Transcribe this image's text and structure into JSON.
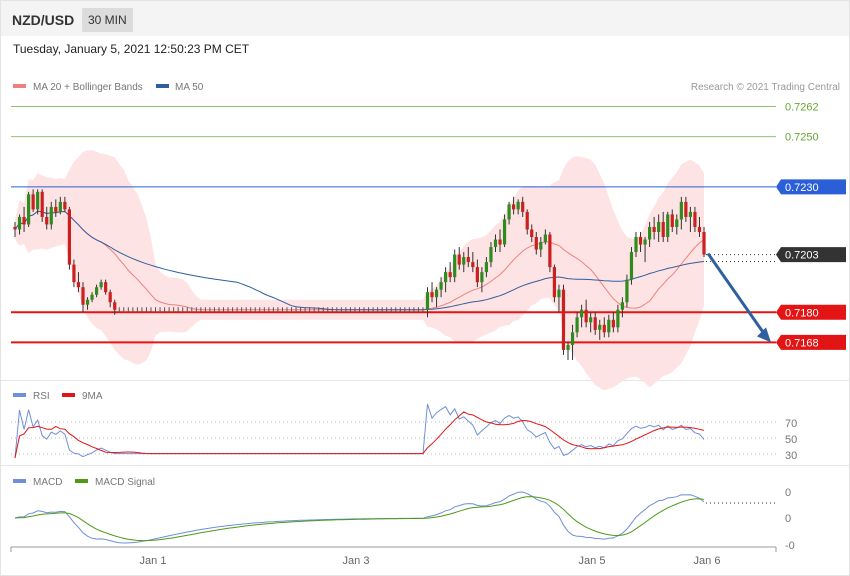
{
  "header": {
    "pair": "NZD/USD",
    "timeframe": "30 MIN",
    "datetime": "Tuesday, January 5, 2021 12:50:23 PM CET"
  },
  "legend": {
    "ma20_label": "MA 20 + Bollinger Bands",
    "ma50_label": "MA 50",
    "copyright": "Research © 2021 Trading Central"
  },
  "colors": {
    "ma20": "#f08080",
    "ma50": "#2f5f9e",
    "bollinger_fill": "#fde3e3",
    "bull_candle": "#2e8b1e",
    "bear_candle": "#cc1f1f",
    "support": "#e31414",
    "resistance": "#2b5fd8",
    "target": "#63a832",
    "current": "#333333",
    "rsi": "#6f8fd8",
    "rsi_ma": "#e31414",
    "macd": "#6f8fd8",
    "macd_signal": "#4e9a18",
    "arrow": "#2f5f9e"
  },
  "price_levels": [
    {
      "value": "0.7262",
      "kind": "target"
    },
    {
      "value": "0.7250",
      "kind": "target"
    },
    {
      "value": "0.7230",
      "kind": "resistance"
    },
    {
      "value": "0.7203",
      "kind": "current"
    },
    {
      "value": "0.7180",
      "kind": "support"
    },
    {
      "value": "0.7168",
      "kind": "support"
    }
  ],
  "rsi_panel": {
    "rsi_label": "RSI",
    "ma_label": "9MA",
    "levels": [
      "70",
      "50",
      "30"
    ]
  },
  "macd_panel": {
    "macd_label": "MACD",
    "signal_label": "MACD Signal",
    "levels": [
      "0",
      "0",
      "-0"
    ]
  },
  "x_axis": {
    "labels": [
      "Jan 1",
      "Jan 3",
      "Jan 5",
      "Jan 6"
    ]
  },
  "chart_data": {
    "type": "candlestick",
    "price_range": [
      0.7155,
      0.7265
    ],
    "x_ticks": [
      "Jan 1",
      "Jan 3",
      "Jan 5",
      "Jan 6"
    ],
    "candles": [
      [
        0.7214,
        0.7216,
        0.721,
        0.7213
      ],
      [
        0.7213,
        0.7219,
        0.7211,
        0.7218
      ],
      [
        0.7218,
        0.7222,
        0.7212,
        0.7215
      ],
      [
        0.7215,
        0.7228,
        0.7214,
        0.7227
      ],
      [
        0.7227,
        0.7229,
        0.722,
        0.7221
      ],
      [
        0.7221,
        0.7229,
        0.7219,
        0.7228
      ],
      [
        0.7228,
        0.7229,
        0.7216,
        0.7218
      ],
      [
        0.7218,
        0.7222,
        0.7213,
        0.7215
      ],
      [
        0.7215,
        0.7224,
        0.7213,
        0.7222
      ],
      [
        0.7222,
        0.7225,
        0.7218,
        0.722
      ],
      [
        0.722,
        0.7226,
        0.7219,
        0.7224
      ],
      [
        0.7224,
        0.7226,
        0.722,
        0.7221
      ],
      [
        0.7221,
        0.7222,
        0.7197,
        0.7199
      ],
      [
        0.7199,
        0.7201,
        0.719,
        0.7192
      ],
      [
        0.7192,
        0.7196,
        0.7188,
        0.719
      ],
      [
        0.719,
        0.7192,
        0.718,
        0.7183
      ],
      [
        0.7183,
        0.7186,
        0.7181,
        0.7185
      ],
      [
        0.7185,
        0.7188,
        0.7184,
        0.7187
      ],
      [
        0.7187,
        0.7191,
        0.7186,
        0.719
      ],
      [
        0.719,
        0.7193,
        0.7189,
        0.7192
      ],
      [
        0.7192,
        0.7193,
        0.7187,
        0.7188
      ],
      [
        0.7188,
        0.7189,
        0.7182,
        0.7184
      ],
      [
        0.7184,
        0.7185,
        0.7179,
        0.7181
      ],
      [
        0.7181,
        0.7182,
        0.718,
        0.7181
      ],
      [
        0.7181,
        0.7182,
        0.718,
        0.7181
      ],
      [
        0.7181,
        0.7182,
        0.718,
        0.7181
      ],
      [
        0.7181,
        0.7182,
        0.718,
        0.7181
      ],
      [
        0.7181,
        0.7182,
        0.718,
        0.7181
      ],
      [
        0.7181,
        0.7182,
        0.718,
        0.7181
      ],
      [
        0.7181,
        0.7182,
        0.718,
        0.7181
      ],
      [
        0.7181,
        0.7182,
        0.718,
        0.7181
      ],
      [
        0.7181,
        0.7182,
        0.718,
        0.7181
      ],
      [
        0.7181,
        0.7182,
        0.718,
        0.7181
      ],
      [
        0.7181,
        0.7182,
        0.718,
        0.7181
      ],
      [
        0.7181,
        0.7182,
        0.718,
        0.7181
      ],
      [
        0.7181,
        0.7182,
        0.718,
        0.7181
      ],
      [
        0.7181,
        0.7182,
        0.718,
        0.7181
      ],
      [
        0.7181,
        0.7182,
        0.718,
        0.7181
      ],
      [
        0.7181,
        0.7182,
        0.718,
        0.7181
      ],
      [
        0.7181,
        0.7182,
        0.718,
        0.7181
      ],
      [
        0.7181,
        0.7182,
        0.718,
        0.7181
      ],
      [
        0.7181,
        0.7182,
        0.718,
        0.7181
      ],
      [
        0.7181,
        0.7182,
        0.718,
        0.7181
      ],
      [
        0.7181,
        0.7182,
        0.718,
        0.7181
      ],
      [
        0.7181,
        0.7182,
        0.718,
        0.7181
      ],
      [
        0.7181,
        0.7182,
        0.718,
        0.7181
      ],
      [
        0.7181,
        0.7182,
        0.718,
        0.7181
      ],
      [
        0.7181,
        0.7182,
        0.718,
        0.7181
      ],
      [
        0.7181,
        0.7182,
        0.718,
        0.7181
      ],
      [
        0.7181,
        0.7182,
        0.718,
        0.7181
      ],
      [
        0.7181,
        0.7182,
        0.718,
        0.7181
      ],
      [
        0.7181,
        0.7182,
        0.718,
        0.7181
      ],
      [
        0.7181,
        0.7182,
        0.718,
        0.7181
      ],
      [
        0.7181,
        0.7182,
        0.718,
        0.7181
      ],
      [
        0.7181,
        0.7182,
        0.718,
        0.7181
      ],
      [
        0.7181,
        0.7182,
        0.718,
        0.7181
      ],
      [
        0.7181,
        0.7182,
        0.718,
        0.7181
      ],
      [
        0.7181,
        0.7182,
        0.718,
        0.7181
      ],
      [
        0.7181,
        0.7182,
        0.718,
        0.7181
      ],
      [
        0.7181,
        0.7182,
        0.718,
        0.7181
      ],
      [
        0.7181,
        0.7182,
        0.718,
        0.7181
      ],
      [
        0.7181,
        0.7182,
        0.718,
        0.7181
      ],
      [
        0.7181,
        0.7182,
        0.718,
        0.7181
      ],
      [
        0.7181,
        0.7182,
        0.718,
        0.7181
      ],
      [
        0.7181,
        0.7182,
        0.718,
        0.7181
      ],
      [
        0.7181,
        0.7182,
        0.718,
        0.7181
      ],
      [
        0.7181,
        0.7182,
        0.718,
        0.7181
      ],
      [
        0.7181,
        0.7182,
        0.718,
        0.7181
      ],
      [
        0.7181,
        0.7182,
        0.718,
        0.7181
      ],
      [
        0.7181,
        0.7182,
        0.718,
        0.7181
      ],
      [
        0.7181,
        0.7182,
        0.718,
        0.7181
      ],
      [
        0.7181,
        0.7182,
        0.718,
        0.7181
      ],
      [
        0.7181,
        0.7182,
        0.718,
        0.7181
      ],
      [
        0.7181,
        0.7182,
        0.718,
        0.7181
      ],
      [
        0.7181,
        0.7182,
        0.718,
        0.7181
      ],
      [
        0.7181,
        0.7182,
        0.718,
        0.7181
      ],
      [
        0.7181,
        0.7182,
        0.718,
        0.7181
      ],
      [
        0.7181,
        0.7182,
        0.718,
        0.7181
      ],
      [
        0.7181,
        0.7182,
        0.718,
        0.7181
      ],
      [
        0.7181,
        0.7182,
        0.718,
        0.7181
      ],
      [
        0.7181,
        0.7182,
        0.718,
        0.7181
      ],
      [
        0.7181,
        0.7182,
        0.718,
        0.7181
      ],
      [
        0.7181,
        0.7182,
        0.718,
        0.7181
      ],
      [
        0.7181,
        0.7182,
        0.718,
        0.7181
      ],
      [
        0.7181,
        0.7182,
        0.718,
        0.7181
      ],
      [
        0.7181,
        0.7182,
        0.718,
        0.7181
      ],
      [
        0.7181,
        0.7182,
        0.718,
        0.7181
      ],
      [
        0.7181,
        0.7182,
        0.718,
        0.7181
      ],
      [
        0.7181,
        0.7182,
        0.718,
        0.7181
      ],
      [
        0.7181,
        0.7182,
        0.718,
        0.7181
      ],
      [
        0.7181,
        0.7182,
        0.718,
        0.7181
      ],
      [
        0.7181,
        0.719,
        0.7178,
        0.7188
      ],
      [
        0.7188,
        0.7192,
        0.7184,
        0.7186
      ],
      [
        0.7186,
        0.719,
        0.7182,
        0.7189
      ],
      [
        0.7189,
        0.7194,
        0.7186,
        0.7192
      ],
      [
        0.7192,
        0.7198,
        0.7188,
        0.7196
      ],
      [
        0.7196,
        0.72,
        0.7192,
        0.7194
      ],
      [
        0.7194,
        0.7205,
        0.7192,
        0.7203
      ],
      [
        0.7203,
        0.7206,
        0.7197,
        0.7199
      ],
      [
        0.7199,
        0.7204,
        0.7196,
        0.7202
      ],
      [
        0.7202,
        0.7206,
        0.7198,
        0.72
      ],
      [
        0.72,
        0.7204,
        0.7196,
        0.7198
      ],
      [
        0.7198,
        0.7201,
        0.719,
        0.7192
      ],
      [
        0.7192,
        0.7198,
        0.7188,
        0.7196
      ],
      [
        0.7196,
        0.7202,
        0.7194,
        0.72
      ],
      [
        0.72,
        0.7208,
        0.7198,
        0.7206
      ],
      [
        0.7206,
        0.7211,
        0.7204,
        0.7209
      ],
      [
        0.7209,
        0.7213,
        0.7204,
        0.7207
      ],
      [
        0.7207,
        0.7219,
        0.7206,
        0.7217
      ],
      [
        0.7217,
        0.7224,
        0.7215,
        0.7223
      ],
      [
        0.7223,
        0.7226,
        0.7219,
        0.7221
      ],
      [
        0.7221,
        0.7225,
        0.7219,
        0.7224
      ],
      [
        0.7224,
        0.7226,
        0.7218,
        0.722
      ],
      [
        0.722,
        0.7221,
        0.7211,
        0.7213
      ],
      [
        0.7213,
        0.7215,
        0.7208,
        0.721
      ],
      [
        0.721,
        0.7212,
        0.7203,
        0.7205
      ],
      [
        0.7205,
        0.721,
        0.7202,
        0.7208
      ],
      [
        0.7208,
        0.7213,
        0.7207,
        0.7211
      ],
      [
        0.7211,
        0.7212,
        0.7196,
        0.7198
      ],
      [
        0.7198,
        0.7199,
        0.7184,
        0.7186
      ],
      [
        0.7186,
        0.7191,
        0.718,
        0.7189
      ],
      [
        0.7189,
        0.7191,
        0.7163,
        0.7165
      ],
      [
        0.7165,
        0.7168,
        0.7161,
        0.7167
      ],
      [
        0.7167,
        0.7175,
        0.7161,
        0.7172
      ],
      [
        0.7172,
        0.718,
        0.717,
        0.7178
      ],
      [
        0.7178,
        0.7183,
        0.7174,
        0.7181
      ],
      [
        0.7181,
        0.7185,
        0.7174,
        0.7176
      ],
      [
        0.7176,
        0.718,
        0.7172,
        0.7178
      ],
      [
        0.7178,
        0.718,
        0.7171,
        0.7173
      ],
      [
        0.7173,
        0.7177,
        0.7169,
        0.7175
      ],
      [
        0.7175,
        0.7178,
        0.717,
        0.7172
      ],
      [
        0.7172,
        0.7179,
        0.717,
        0.7177
      ],
      [
        0.7177,
        0.718,
        0.7172,
        0.7174
      ],
      [
        0.7174,
        0.7183,
        0.7172,
        0.7181
      ],
      [
        0.7181,
        0.7186,
        0.7178,
        0.7184
      ],
      [
        0.7184,
        0.7195,
        0.7182,
        0.7193
      ],
      [
        0.7193,
        0.7206,
        0.7191,
        0.7204
      ],
      [
        0.7204,
        0.7212,
        0.7202,
        0.721
      ],
      [
        0.721,
        0.7212,
        0.7204,
        0.7207
      ],
      [
        0.7207,
        0.721,
        0.72,
        0.7209
      ],
      [
        0.7209,
        0.7216,
        0.7206,
        0.7214
      ],
      [
        0.7214,
        0.7218,
        0.7209,
        0.7212
      ],
      [
        0.7212,
        0.7219,
        0.7208,
        0.7216
      ],
      [
        0.7216,
        0.722,
        0.7208,
        0.721
      ],
      [
        0.721,
        0.722,
        0.7208,
        0.7219
      ],
      [
        0.7219,
        0.7221,
        0.7212,
        0.7214
      ],
      [
        0.7214,
        0.7219,
        0.7211,
        0.7217
      ],
      [
        0.7217,
        0.7226,
        0.7213,
        0.7224
      ],
      [
        0.7224,
        0.7226,
        0.7216,
        0.7218
      ],
      [
        0.7218,
        0.7222,
        0.7212,
        0.722
      ],
      [
        0.722,
        0.7222,
        0.7212,
        0.7214
      ],
      [
        0.7214,
        0.7218,
        0.721,
        0.7212
      ],
      [
        0.7212,
        0.7214,
        0.7202,
        0.7203
      ]
    ],
    "levels": [
      0.7262,
      0.725,
      0.723,
      0.7203,
      0.718,
      0.7168
    ],
    "projection": {
      "from": 0.7203,
      "to": 0.7168
    }
  }
}
